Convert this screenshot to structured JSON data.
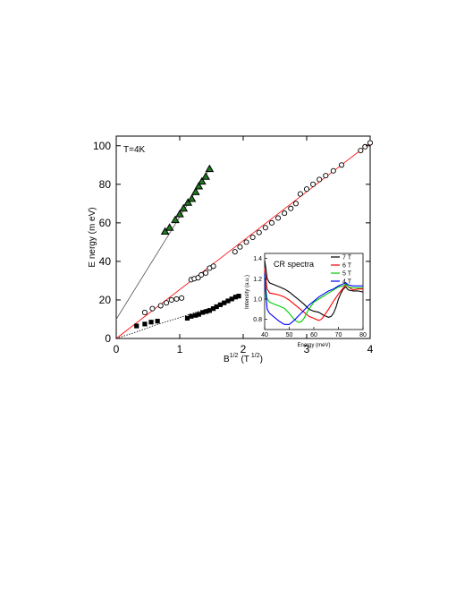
{
  "chart_data": [
    {
      "type": "scatter",
      "annotation": "T=4K",
      "xlabel": "B",
      "xlabel_sup": "1/2",
      "xunit": "(T",
      "xunit_sup": "1/2",
      "xunit_close": ")",
      "ylabel": "E nergy  (m eV)",
      "xlim": [
        0,
        4
      ],
      "ylim": [
        0,
        105
      ],
      "xticks": [
        0,
        1,
        2,
        3,
        4
      ],
      "yticks": [
        0,
        20,
        40,
        60,
        80,
        100
      ],
      "xtick_labels": [
        "0",
        "1",
        "2",
        "3",
        "4"
      ],
      "ytick_labels": [
        "0",
        "20",
        "40",
        "60",
        "80",
        "100"
      ],
      "grid": false,
      "series": [
        {
          "marker": "triangle-filled",
          "color": "#000000",
          "fill": "#1f7a1f",
          "x": [
            0.77,
            0.84,
            0.93,
            1.0,
            1.06,
            1.13,
            1.19,
            1.25,
            1.3,
            1.35,
            1.41,
            1.47
          ],
          "y": [
            55.5,
            57.5,
            61.5,
            64.5,
            67.5,
            70.5,
            72.5,
            76,
            79,
            81.5,
            84,
            88
          ]
        },
        {
          "marker": "circle-open",
          "color": "#000000",
          "x": [
            0.45,
            0.57,
            0.7,
            0.79,
            0.87,
            0.95,
            1.03,
            1.18,
            1.23,
            1.29,
            1.34,
            1.41,
            1.47,
            1.53,
            1.87,
            1.95,
            2.05,
            2.15,
            2.25,
            2.35,
            2.45,
            2.55,
            2.65,
            2.75,
            2.83,
            2.9,
            3.0,
            3.1,
            3.2,
            3.3,
            3.42,
            3.55,
            3.85,
            3.92,
            4.0
          ],
          "y": [
            13.5,
            15.5,
            17,
            18.5,
            20,
            20.5,
            21,
            30.5,
            31,
            31.5,
            33,
            34,
            36.5,
            37.5,
            45,
            47.5,
            50,
            52.5,
            55,
            57.5,
            60,
            62.5,
            65,
            67.5,
            70,
            75,
            77.5,
            80,
            82.5,
            84.5,
            87,
            90,
            97.5,
            99.5,
            101.5
          ]
        },
        {
          "marker": "square-filled",
          "color": "#000000",
          "x": [
            0.32,
            0.45,
            0.55,
            0.65,
            1.12,
            1.18,
            1.25,
            1.3,
            1.36,
            1.42,
            1.47,
            1.53,
            1.58,
            1.64,
            1.7,
            1.76,
            1.82,
            1.88,
            1.93
          ],
          "y": [
            6.5,
            7.5,
            8.5,
            9,
            10.5,
            11.5,
            12,
            12.5,
            13.5,
            14,
            14.5,
            15.5,
            16.5,
            17.5,
            18.5,
            19.5,
            20.5,
            21.5,
            22
          ]
        }
      ],
      "fit_lines": [
        {
          "style": "solid",
          "color": "#555555",
          "x": [
            0,
            1.47
          ],
          "y": [
            10,
            88
          ]
        },
        {
          "style": "solid",
          "color": "#ff0000",
          "x": [
            0,
            4.0
          ],
          "y": [
            0,
            101.5
          ]
        },
        {
          "style": "dotted",
          "color": "#000000",
          "x": [
            0,
            0.3,
            0.6,
            0.9,
            1.2,
            1.5,
            1.9
          ],
          "y": [
            0,
            3.2,
            6.8,
            9.8,
            13.0,
            16.0,
            20.8
          ]
        }
      ]
    },
    {
      "type": "line",
      "title": "CR spectra",
      "xlabel": "Energy (meV)",
      "ylabel": "Intensity (a.u.)",
      "xlim": [
        40,
        80
      ],
      "ylim": [
        0.7,
        1.45
      ],
      "xticks": [
        40,
        50,
        60,
        70,
        80
      ],
      "yticks": [
        0.8,
        1.0,
        1.2,
        1.4
      ],
      "xtick_labels": [
        "40",
        "50",
        "60",
        "70",
        "80"
      ],
      "ytick_labels": [
        "0.8",
        "1.0",
        "1.2",
        "1.4"
      ],
      "legend_position": "top-right",
      "series": [
        {
          "name": "7 T",
          "color": "#000000",
          "x": [
            40,
            40.5,
            41,
            42,
            44,
            46,
            48,
            50,
            52,
            54,
            56,
            58,
            60,
            62,
            64,
            65,
            66,
            67,
            68,
            69,
            70,
            71,
            72,
            73,
            74,
            76,
            78,
            80
          ],
          "y": [
            1.38,
            1.3,
            1.2,
            1.16,
            1.14,
            1.12,
            1.1,
            1.07,
            1.03,
            0.99,
            0.95,
            0.9,
            0.88,
            0.87,
            0.84,
            0.83,
            0.82,
            0.83,
            0.86,
            0.92,
            1.0,
            1.06,
            1.1,
            1.12,
            1.09,
            1.08,
            1.08,
            1.07
          ]
        },
        {
          "name": "6 T",
          "color": "#ff0000",
          "x": [
            40,
            40.5,
            41,
            42,
            44,
            46,
            48,
            50,
            52,
            54,
            56,
            58,
            59,
            60,
            61,
            62,
            63,
            64,
            66,
            68,
            70,
            72,
            73,
            74,
            76,
            78,
            80
          ],
          "y": [
            1.3,
            1.2,
            1.1,
            1.06,
            1.05,
            1.04,
            1.02,
            0.99,
            0.95,
            0.91,
            0.87,
            0.83,
            0.82,
            0.81,
            0.8,
            0.79,
            0.8,
            0.83,
            0.9,
            0.98,
            1.05,
            1.11,
            1.14,
            1.12,
            1.09,
            1.1,
            1.1
          ]
        },
        {
          "name": "5 T",
          "color": "#00cc00",
          "x": [
            40,
            40.5,
            41,
            42,
            44,
            46,
            48,
            50,
            52,
            53,
            54,
            55,
            56,
            57,
            58,
            60,
            62,
            64,
            66,
            68,
            70,
            72,
            73,
            74,
            76,
            78,
            80
          ],
          "y": [
            1.25,
            1.1,
            1.0,
            0.97,
            0.95,
            0.93,
            0.91,
            0.86,
            0.8,
            0.78,
            0.77,
            0.78,
            0.81,
            0.86,
            0.9,
            0.97,
            1.0,
            1.03,
            1.06,
            1.09,
            1.12,
            1.13,
            1.15,
            1.12,
            1.11,
            1.11,
            1.11
          ]
        },
        {
          "name": "4 T",
          "color": "#0000ff",
          "x": [
            40,
            40.5,
            41,
            42,
            44,
            46,
            48,
            50,
            52,
            54,
            56,
            58,
            60,
            62,
            64,
            66,
            68,
            70,
            72,
            73,
            74,
            76,
            78,
            80
          ],
          "y": [
            1.25,
            1.05,
            0.9,
            0.86,
            0.82,
            0.78,
            0.75,
            0.75,
            0.79,
            0.84,
            0.89,
            0.94,
            0.98,
            1.02,
            1.05,
            1.08,
            1.1,
            1.13,
            1.15,
            1.16,
            1.14,
            1.13,
            1.13,
            1.13
          ]
        }
      ]
    }
  ]
}
